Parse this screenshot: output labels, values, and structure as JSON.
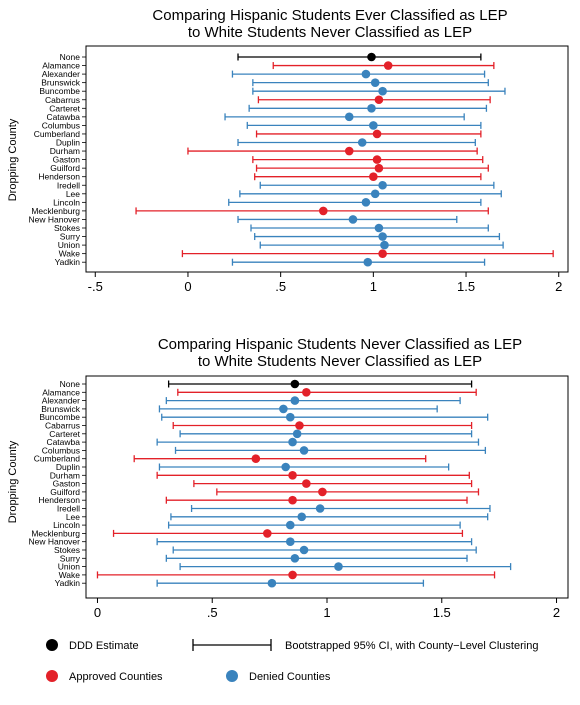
{
  "colors": {
    "estimate": "#000000",
    "approved": "#e32129",
    "denied": "#3a83bd"
  },
  "chart_data": [
    {
      "type": "scatter",
      "subtype": "forest-plot",
      "title": [
        "Comparing Hispanic Students Ever Classified as LEP",
        "to White Students Never Classified as LEP"
      ],
      "ylabel": "Dropping County",
      "xlabel": "",
      "xlim": [
        -0.55,
        2.05
      ],
      "xticks": [
        -0.5,
        0,
        0.5,
        1,
        1.5,
        2
      ],
      "xtick_labels": [
        "-.5",
        "0",
        ".5",
        "1",
        "1.5",
        "2"
      ],
      "grid": false,
      "rows": [
        {
          "county": "None",
          "group": "estimate",
          "est": 0.99,
          "lo": 0.27,
          "hi": 1.58
        },
        {
          "county": "Alamance",
          "group": "approved",
          "est": 1.08,
          "lo": 0.46,
          "hi": 1.65
        },
        {
          "county": "Alexander",
          "group": "denied",
          "est": 0.96,
          "lo": 0.24,
          "hi": 1.6
        },
        {
          "county": "Brunswick",
          "group": "denied",
          "est": 1.01,
          "lo": 0.35,
          "hi": 1.62
        },
        {
          "county": "Buncombe",
          "group": "denied",
          "est": 1.05,
          "lo": 0.35,
          "hi": 1.71
        },
        {
          "county": "Cabarrus",
          "group": "approved",
          "est": 1.03,
          "lo": 0.38,
          "hi": 1.63
        },
        {
          "county": "Carteret",
          "group": "denied",
          "est": 0.99,
          "lo": 0.33,
          "hi": 1.61
        },
        {
          "county": "Catawba",
          "group": "denied",
          "est": 0.87,
          "lo": 0.2,
          "hi": 1.49
        },
        {
          "county": "Columbus",
          "group": "denied",
          "est": 1.0,
          "lo": 0.32,
          "hi": 1.58
        },
        {
          "county": "Cumberland",
          "group": "approved",
          "est": 1.02,
          "lo": 0.37,
          "hi": 1.58
        },
        {
          "county": "Duplin",
          "group": "denied",
          "est": 0.94,
          "lo": 0.27,
          "hi": 1.55
        },
        {
          "county": "Durham",
          "group": "approved",
          "est": 0.87,
          "lo": 0.0,
          "hi": 1.56
        },
        {
          "county": "Gaston",
          "group": "approved",
          "est": 1.02,
          "lo": 0.35,
          "hi": 1.59
        },
        {
          "county": "Guilford",
          "group": "approved",
          "est": 1.03,
          "lo": 0.37,
          "hi": 1.62
        },
        {
          "county": "Henderson",
          "group": "approved",
          "est": 1.0,
          "lo": 0.36,
          "hi": 1.58
        },
        {
          "county": "Iredell",
          "group": "denied",
          "est": 1.05,
          "lo": 0.39,
          "hi": 1.65
        },
        {
          "county": "Lee",
          "group": "denied",
          "est": 1.01,
          "lo": 0.28,
          "hi": 1.69
        },
        {
          "county": "Lincoln",
          "group": "denied",
          "est": 0.96,
          "lo": 0.22,
          "hi": 1.58
        },
        {
          "county": "Mecklenburg",
          "group": "approved",
          "est": 0.73,
          "lo": -0.28,
          "hi": 1.62
        },
        {
          "county": "New Hanover",
          "group": "denied",
          "est": 0.89,
          "lo": 0.27,
          "hi": 1.45
        },
        {
          "county": "Stokes",
          "group": "denied",
          "est": 1.03,
          "lo": 0.34,
          "hi": 1.62
        },
        {
          "county": "Surry",
          "group": "denied",
          "est": 1.05,
          "lo": 0.36,
          "hi": 1.68
        },
        {
          "county": "Union",
          "group": "denied",
          "est": 1.06,
          "lo": 0.39,
          "hi": 1.7
        },
        {
          "county": "Wake",
          "group": "approved",
          "est": 1.05,
          "lo": -0.03,
          "hi": 1.97
        },
        {
          "county": "Yadkin",
          "group": "denied",
          "est": 0.97,
          "lo": 0.24,
          "hi": 1.6
        }
      ]
    },
    {
      "type": "scatter",
      "subtype": "forest-plot",
      "title": [
        "Comparing Hispanic Students Never Classified as LEP",
        "to White Students Never Classified as LEP"
      ],
      "ylabel": "Dropping County",
      "xlabel": "",
      "xlim": [
        -0.05,
        2.05
      ],
      "xticks": [
        0,
        0.5,
        1,
        1.5,
        2
      ],
      "xtick_labels": [
        "0",
        ".5",
        "1",
        "1.5",
        "2"
      ],
      "grid": false,
      "rows": [
        {
          "county": "None",
          "group": "estimate",
          "est": 0.86,
          "lo": 0.31,
          "hi": 1.63
        },
        {
          "county": "Alamance",
          "group": "approved",
          "est": 0.91,
          "lo": 0.35,
          "hi": 1.65
        },
        {
          "county": "Alexander",
          "group": "denied",
          "est": 0.86,
          "lo": 0.3,
          "hi": 1.58
        },
        {
          "county": "Brunswick",
          "group": "denied",
          "est": 0.81,
          "lo": 0.27,
          "hi": 1.48
        },
        {
          "county": "Buncombe",
          "group": "denied",
          "est": 0.84,
          "lo": 0.28,
          "hi": 1.7
        },
        {
          "county": "Cabarrus",
          "group": "approved",
          "est": 0.88,
          "lo": 0.33,
          "hi": 1.63
        },
        {
          "county": "Carteret",
          "group": "denied",
          "est": 0.87,
          "lo": 0.36,
          "hi": 1.63
        },
        {
          "county": "Catawba",
          "group": "denied",
          "est": 0.85,
          "lo": 0.26,
          "hi": 1.66
        },
        {
          "county": "Columbus",
          "group": "denied",
          "est": 0.9,
          "lo": 0.34,
          "hi": 1.69
        },
        {
          "county": "Cumberland",
          "group": "approved",
          "est": 0.69,
          "lo": 0.16,
          "hi": 1.43
        },
        {
          "county": "Duplin",
          "group": "denied",
          "est": 0.82,
          "lo": 0.27,
          "hi": 1.53
        },
        {
          "county": "Durham",
          "group": "approved",
          "est": 0.85,
          "lo": 0.26,
          "hi": 1.62
        },
        {
          "county": "Gaston",
          "group": "approved",
          "est": 0.91,
          "lo": 0.42,
          "hi": 1.63
        },
        {
          "county": "Guilford",
          "group": "approved",
          "est": 0.98,
          "lo": 0.52,
          "hi": 1.66
        },
        {
          "county": "Henderson",
          "group": "approved",
          "est": 0.85,
          "lo": 0.3,
          "hi": 1.61
        },
        {
          "county": "Iredell",
          "group": "denied",
          "est": 0.97,
          "lo": 0.41,
          "hi": 1.71
        },
        {
          "county": "Lee",
          "group": "denied",
          "est": 0.89,
          "lo": 0.32,
          "hi": 1.7
        },
        {
          "county": "Lincoln",
          "group": "denied",
          "est": 0.84,
          "lo": 0.31,
          "hi": 1.58
        },
        {
          "county": "Mecklenburg",
          "group": "approved",
          "est": 0.74,
          "lo": 0.07,
          "hi": 1.59
        },
        {
          "county": "New Hanover",
          "group": "denied",
          "est": 0.84,
          "lo": 0.26,
          "hi": 1.63
        },
        {
          "county": "Stokes",
          "group": "denied",
          "est": 0.9,
          "lo": 0.33,
          "hi": 1.65
        },
        {
          "county": "Surry",
          "group": "denied",
          "est": 0.86,
          "lo": 0.3,
          "hi": 1.61
        },
        {
          "county": "Union",
          "group": "denied",
          "est": 1.05,
          "lo": 0.36,
          "hi": 1.8
        },
        {
          "county": "Wake",
          "group": "approved",
          "est": 0.85,
          "lo": 0.0,
          "hi": 1.73
        },
        {
          "county": "Yadkin",
          "group": "denied",
          "est": 0.76,
          "lo": 0.26,
          "hi": 1.42
        }
      ]
    }
  ],
  "legend": {
    "estimate_label": "DDD Estimate",
    "ci_label": "Bootstrapped 95% CI, with County−Level Clustering",
    "approved_label": "Approved Counties",
    "denied_label": "Denied Counties"
  }
}
